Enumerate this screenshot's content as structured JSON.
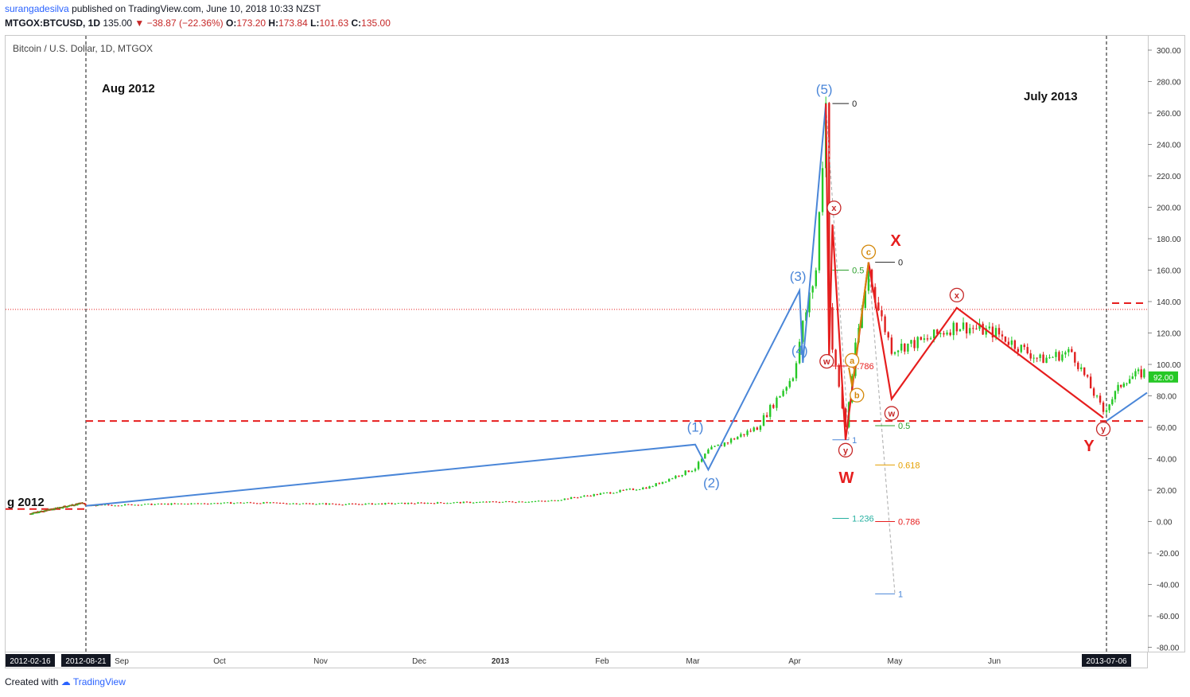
{
  "header": {
    "user": "surangadesilva",
    "published_text": "published on TradingView.com, June 10, 2018 10:33 NZST",
    "symbol": "MTGOX:BTCUSD, 1D",
    "last": "135.00",
    "change": "▼ −38.87 (−22.36%)",
    "open_label": "O:",
    "open": "173.20",
    "high_label": "H:",
    "high": "173.84",
    "low_label": "L:",
    "low": "101.63",
    "close_label": "C:",
    "close": "135.00"
  },
  "pane_title": "Bitcoin / U.S. Dollar, 1D, MTGOX",
  "footer": {
    "created_with": "Created with",
    "brand": "TradingView"
  },
  "colors": {
    "up": "#26c826",
    "down": "#e02020",
    "wave_blue": "#4a86d8",
    "wave_red": "#e61e1e",
    "orange": "#d4880a"
  },
  "chart_data": {
    "type": "line",
    "yticks": [
      300,
      280,
      260,
      240,
      220,
      200,
      180,
      160,
      140,
      120,
      100,
      80,
      60,
      40,
      20,
      0,
      -20,
      -40,
      -60,
      -80
    ],
    "ylim": [
      -85,
      305
    ],
    "xticks": [
      "2012-02-16",
      "2012-08-21",
      "Sep",
      "Oct",
      "Nov",
      "Dec",
      "2013",
      "Feb",
      "Mar",
      "Apr",
      "May",
      "Jun",
      "2013-07-06"
    ],
    "last_price_label": "92.00",
    "annotations": [
      "Aug 2012",
      "July 2013",
      "g 2012",
      "W",
      "X",
      "Y"
    ],
    "series": [
      {
        "name": "blue-impulse",
        "labels": [
          "(1)",
          "(2)",
          "(3)",
          "(4)",
          "(5)"
        ],
        "points": [
          [
            "2012-08-21",
            10
          ],
          [
            "2013-03-01",
            49
          ],
          [
            "2013-03-05",
            33
          ],
          [
            "2013-04-02",
            147
          ],
          [
            "2013-04-03",
            101
          ],
          [
            "2013-04-10",
            266
          ]
        ]
      },
      {
        "name": "red-correction",
        "labels": [
          "w",
          "x",
          "y",
          "w",
          "x",
          "y"
        ],
        "points": [
          [
            "2013-04-10",
            266
          ],
          [
            "2013-04-11",
            105
          ],
          [
            "2013-04-12",
            189
          ],
          [
            "2013-04-16",
            52
          ],
          [
            "2013-04-23",
            165
          ],
          [
            "2013-04-30",
            78
          ],
          [
            "2013-05-20",
            136
          ],
          [
            "2013-07-05",
            66
          ]
        ]
      },
      {
        "name": "orange-abc",
        "labels": [
          "a",
          "b",
          "c"
        ],
        "points": [
          [
            "2013-04-17",
            98
          ],
          [
            "2013-04-18",
            86
          ],
          [
            "2013-04-23",
            165
          ]
        ]
      }
    ],
    "fib_levels_1": [
      [
        "0",
        266
      ],
      [
        "0.5",
        160
      ],
      [
        "0.786",
        99
      ],
      [
        "1",
        52
      ],
      [
        "1.236",
        2
      ]
    ],
    "fib_levels_2": [
      [
        "0",
        165
      ],
      [
        "0.5",
        61
      ],
      [
        "0.618",
        36
      ],
      [
        "0.786",
        0
      ],
      [
        "1",
        -46
      ]
    ],
    "horizontal_lines": [
      {
        "style": "dashed",
        "value": 64
      },
      {
        "style": "dotted",
        "value": 135
      }
    ]
  }
}
